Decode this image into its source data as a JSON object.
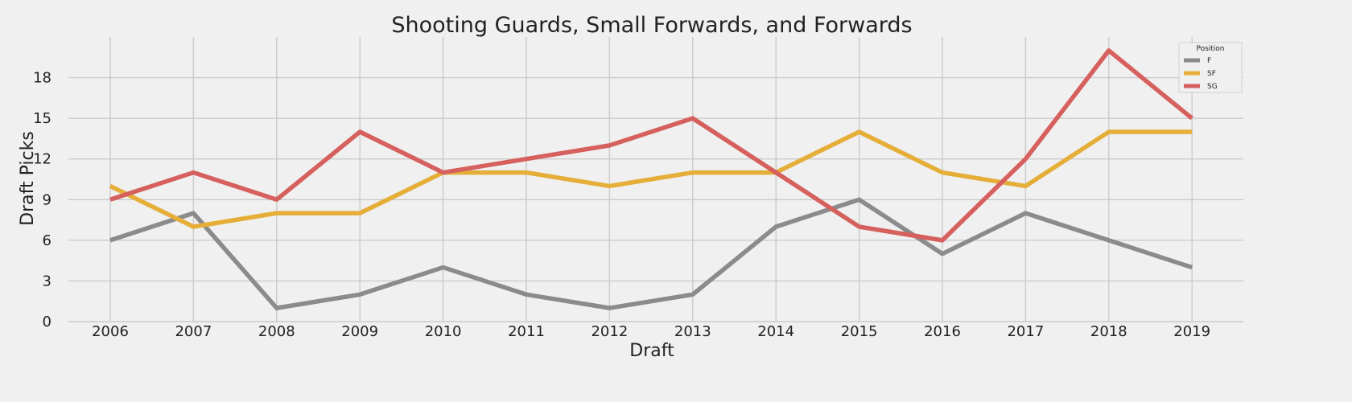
{
  "chart_data": {
    "type": "line",
    "title": "Shooting Guards, Small Forwards, and Forwards",
    "xlabel": "Draft",
    "ylabel": "Draft Picks",
    "x": [
      2006,
      2007,
      2008,
      2009,
      2010,
      2011,
      2012,
      2013,
      2014,
      2015,
      2016,
      2017,
      2018,
      2019
    ],
    "x_tick_labels": [
      "2006",
      "2007",
      "2008",
      "2009",
      "2010",
      "2011",
      "2012",
      "2013",
      "2014",
      "2015",
      "2016",
      "2017",
      "2018",
      "2019"
    ],
    "ylim": [
      0,
      21
    ],
    "y_ticks": [
      0,
      3,
      6,
      9,
      12,
      15,
      18
    ],
    "y_tick_labels": [
      "0",
      "3",
      "6",
      "9",
      "12",
      "15",
      "18"
    ],
    "grid": true,
    "legend": {
      "title": "Position",
      "placement": "top-right"
    },
    "series": [
      {
        "name": "F",
        "color": "#8b8b8b",
        "values": [
          6,
          8,
          1,
          2,
          4,
          2,
          1,
          2,
          7,
          9,
          5,
          8,
          6,
          4
        ]
      },
      {
        "name": "SF",
        "color": "#e5ae38",
        "values": [
          10,
          7,
          8,
          8,
          11,
          11,
          10,
          11,
          11,
          14,
          11,
          10,
          14,
          14
        ]
      },
      {
        "name": "SG",
        "color": "#d6605d",
        "values": [
          9,
          11,
          9,
          14,
          11,
          12,
          13,
          15,
          11,
          7,
          6,
          12,
          20,
          15
        ]
      }
    ]
  }
}
